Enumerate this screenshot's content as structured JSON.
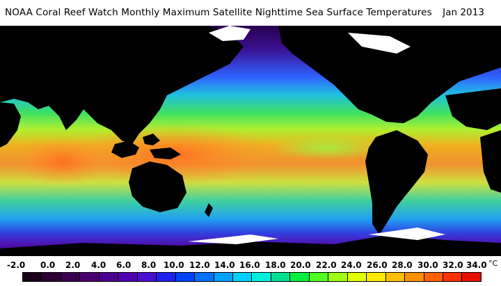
{
  "header": {
    "title": "NOAA Coral Reef Watch Monthly Maximum Satellite Nighttime Sea Surface Temperatures",
    "date": "Jan 2013"
  },
  "legend": {
    "unit": "°C",
    "ticks": [
      "-2.0",
      "0.0",
      "2.0",
      "4.0",
      "6.0",
      "8.0",
      "10.0",
      "12.0",
      "14.0",
      "16.0",
      "18.0",
      "20.0",
      "22.0",
      "24.0",
      "26.0",
      "28.0",
      "30.0",
      "32.0",
      "34.0"
    ],
    "colors": [
      "#1a001a",
      "#2a0030",
      "#3a0050",
      "#4a0070",
      "#4c0090",
      "#5000b0",
      "#4a10d0",
      "#2020f0",
      "#0040ff",
      "#0070ff",
      "#00a0ff",
      "#00d0ff",
      "#00f0e0",
      "#00e090",
      "#00f040",
      "#50ff20",
      "#a0ff10",
      "#e0ff00",
      "#ffe800",
      "#ffc000",
      "#ff9000",
      "#ff6000",
      "#ff3000",
      "#e81000"
    ]
  },
  "map": {
    "land_color": "#000000",
    "ice_color": "#ffffff",
    "features": [
      "ocean-sea-surface-temperature",
      "continents",
      "polar-ice"
    ]
  }
}
